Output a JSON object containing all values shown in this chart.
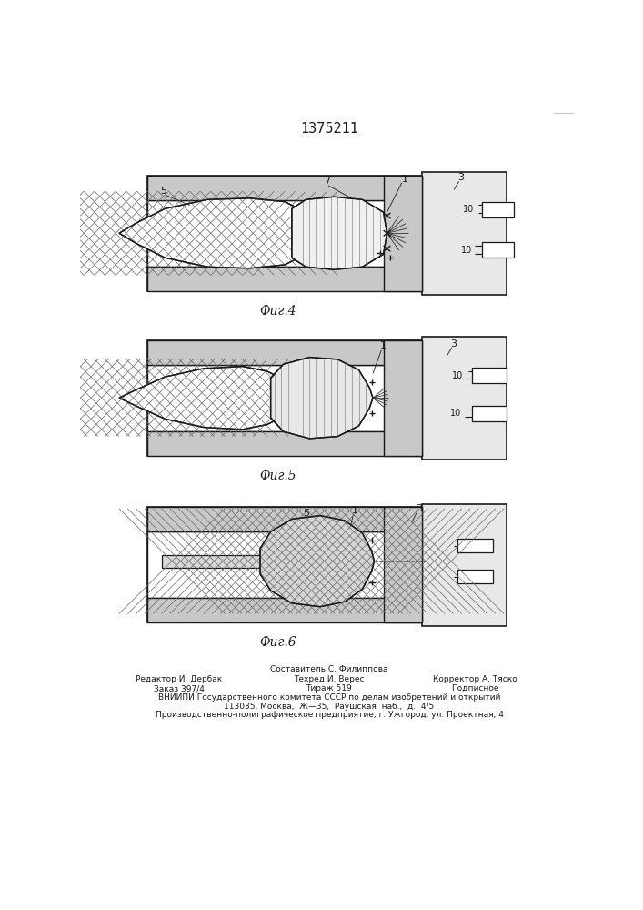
{
  "title_number": "1375211",
  "fig4_label": "Фиг.4",
  "fig5_label": "Фиг.5",
  "fig6_label": "Фиг.6",
  "footer_line1": "Составитель С. Филиппова",
  "footer_line2a": "Редактор И. Дербак",
  "footer_line2b": "Техред И. Верес",
  "footer_line2c": "Корректор А. Тяско",
  "footer_line3a": "Заказ 397/4",
  "footer_line3b": "Тираж 519",
  "footer_line3c": "Подписное",
  "footer_line4": "ВНИИПИ Государственного комитета СССР по делам изобретений и открытий",
  "footer_line5": "113035, Москва,  Ж—35,  Раушская  наб.,  д.  4/5",
  "footer_line6": "Производственно-полиграфическое предприятие, г. Ужгород, ул. Проектная, 4",
  "lc": "#1a1a1a"
}
